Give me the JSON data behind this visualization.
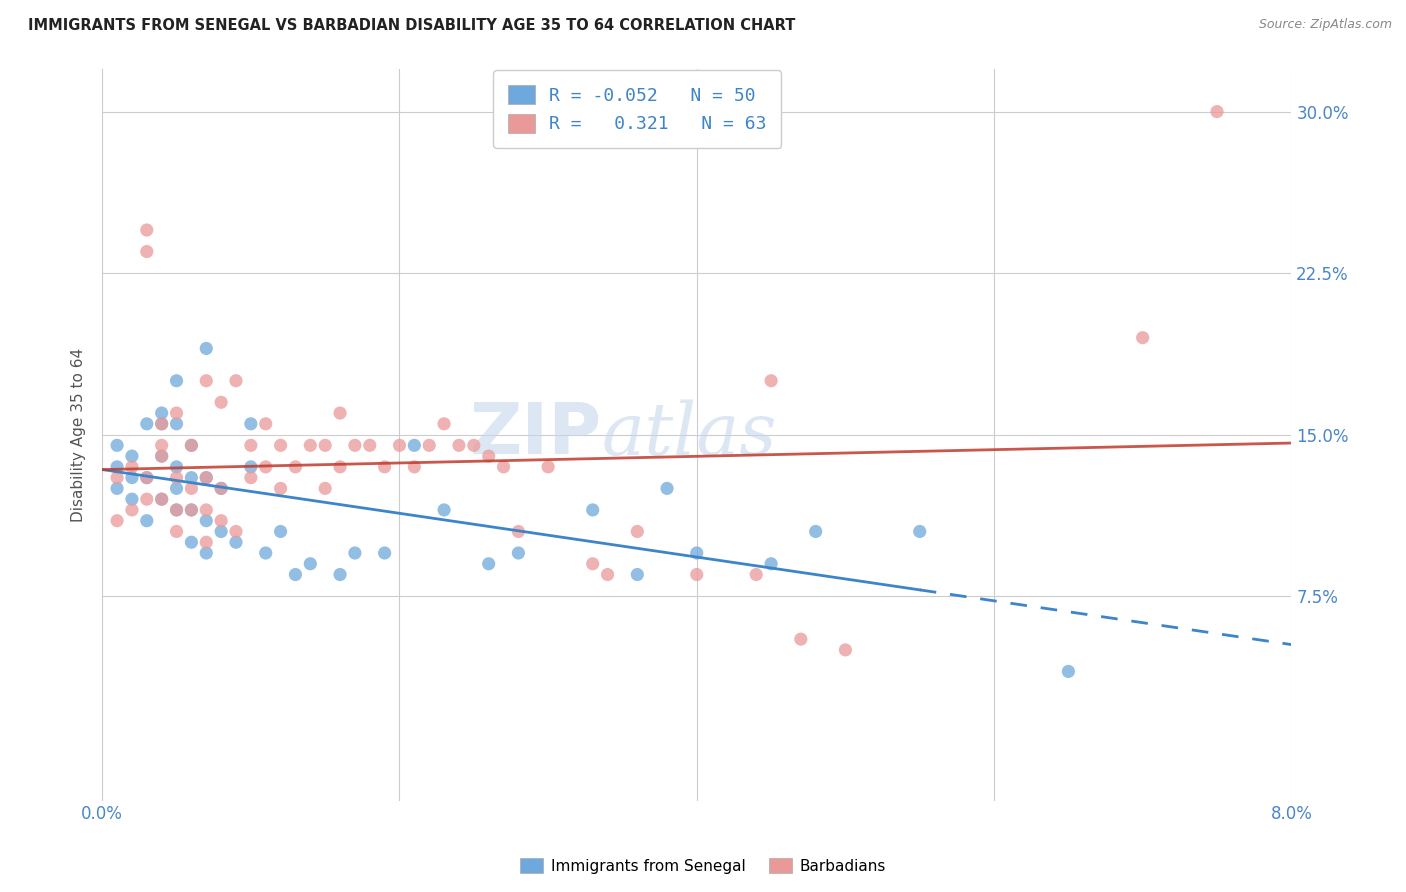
{
  "title": "IMMIGRANTS FROM SENEGAL VS BARBADIAN DISABILITY AGE 35 TO 64 CORRELATION CHART",
  "source": "Source: ZipAtlas.com",
  "ylabel": "Disability Age 35 to 64",
  "xlim": [
    0.0,
    0.08
  ],
  "ylim": [
    -0.02,
    0.32
  ],
  "xticks": [
    0.0,
    0.02,
    0.04,
    0.06,
    0.08
  ],
  "xtick_labels": [
    "0.0%",
    "",
    "",
    "",
    "8.0%"
  ],
  "ytick_labels": [
    "7.5%",
    "15.0%",
    "22.5%",
    "30.0%"
  ],
  "yticks": [
    0.075,
    0.15,
    0.225,
    0.3
  ],
  "legend1_label": "R = -0.052   N = 50",
  "legend2_label": "R =   0.321   N = 63",
  "series1_color": "#6fa8dc",
  "series2_color": "#ea9999",
  "watermark": "ZIPatlas",
  "senegal_x": [
    0.001,
    0.001,
    0.001,
    0.002,
    0.002,
    0.002,
    0.003,
    0.003,
    0.003,
    0.004,
    0.004,
    0.004,
    0.004,
    0.005,
    0.005,
    0.005,
    0.005,
    0.005,
    0.006,
    0.006,
    0.006,
    0.006,
    0.007,
    0.007,
    0.007,
    0.007,
    0.008,
    0.008,
    0.009,
    0.01,
    0.01,
    0.011,
    0.012,
    0.013,
    0.014,
    0.016,
    0.017,
    0.019,
    0.021,
    0.023,
    0.026,
    0.028,
    0.033,
    0.036,
    0.038,
    0.04,
    0.045,
    0.048,
    0.055,
    0.065
  ],
  "senegal_y": [
    0.125,
    0.135,
    0.145,
    0.12,
    0.13,
    0.14,
    0.11,
    0.13,
    0.155,
    0.12,
    0.14,
    0.155,
    0.16,
    0.115,
    0.125,
    0.135,
    0.155,
    0.175,
    0.1,
    0.115,
    0.13,
    0.145,
    0.095,
    0.11,
    0.13,
    0.19,
    0.105,
    0.125,
    0.1,
    0.135,
    0.155,
    0.095,
    0.105,
    0.085,
    0.09,
    0.085,
    0.095,
    0.095,
    0.145,
    0.115,
    0.09,
    0.095,
    0.115,
    0.085,
    0.125,
    0.095,
    0.09,
    0.105,
    0.105,
    0.04
  ],
  "barbadian_x": [
    0.001,
    0.001,
    0.002,
    0.002,
    0.003,
    0.003,
    0.003,
    0.003,
    0.004,
    0.004,
    0.004,
    0.004,
    0.005,
    0.005,
    0.005,
    0.005,
    0.006,
    0.006,
    0.006,
    0.007,
    0.007,
    0.007,
    0.007,
    0.008,
    0.008,
    0.008,
    0.009,
    0.009,
    0.01,
    0.01,
    0.011,
    0.011,
    0.012,
    0.012,
    0.013,
    0.014,
    0.015,
    0.015,
    0.016,
    0.016,
    0.017,
    0.018,
    0.019,
    0.02,
    0.021,
    0.022,
    0.023,
    0.024,
    0.025,
    0.026,
    0.027,
    0.028,
    0.03,
    0.033,
    0.034,
    0.036,
    0.04,
    0.044,
    0.045,
    0.047,
    0.05,
    0.07,
    0.075
  ],
  "barbadian_y": [
    0.11,
    0.13,
    0.115,
    0.135,
    0.12,
    0.13,
    0.235,
    0.245,
    0.12,
    0.14,
    0.145,
    0.155,
    0.105,
    0.115,
    0.13,
    0.16,
    0.115,
    0.125,
    0.145,
    0.1,
    0.115,
    0.13,
    0.175,
    0.11,
    0.125,
    0.165,
    0.105,
    0.175,
    0.13,
    0.145,
    0.135,
    0.155,
    0.125,
    0.145,
    0.135,
    0.145,
    0.125,
    0.145,
    0.135,
    0.16,
    0.145,
    0.145,
    0.135,
    0.145,
    0.135,
    0.145,
    0.155,
    0.145,
    0.145,
    0.14,
    0.135,
    0.105,
    0.135,
    0.09,
    0.085,
    0.105,
    0.085,
    0.085,
    0.175,
    0.055,
    0.05,
    0.195,
    0.3
  ]
}
